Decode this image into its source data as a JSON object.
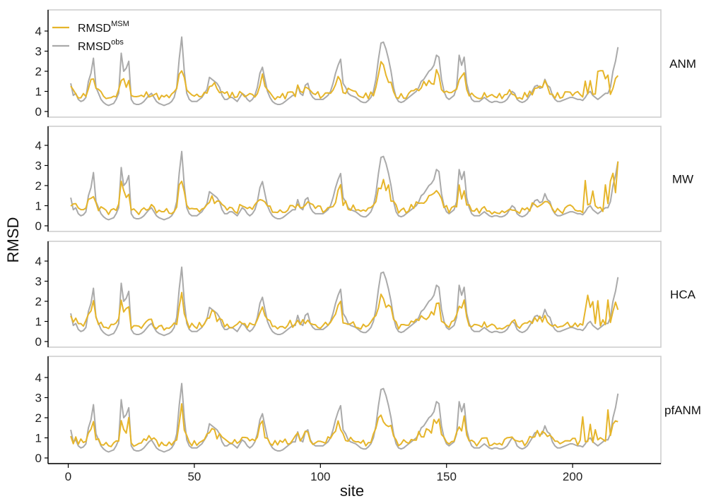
{
  "chart_data": {
    "type": "line",
    "xlabel": "site",
    "ylabel": "RMSD",
    "xlim": [
      -8,
      235
    ],
    "ylim": [
      -0.2,
      4.5
    ],
    "x_ticks": [
      0,
      50,
      100,
      150,
      200
    ],
    "y_ticks": [
      0,
      1,
      2,
      3,
      4
    ],
    "grid": false,
    "legend": {
      "placement": "top-left",
      "entries": [
        {
          "base": "RMSD",
          "sup": "MSM",
          "color": "#E6B52A"
        },
        {
          "base": "RMSD",
          "sup": "obs",
          "color": "#AAAAAA"
        }
      ]
    },
    "observed_values": [
      1.4,
      0.8,
      0.9,
      0.6,
      0.5,
      0.55,
      0.7,
      1.5,
      1.9,
      2.65,
      1.2,
      0.9,
      0.6,
      0.45,
      0.35,
      0.3,
      0.35,
      0.4,
      0.6,
      0.9,
      2.9,
      2.0,
      2.15,
      2.5,
      0.6,
      0.4,
      0.35,
      0.35,
      0.4,
      0.5,
      0.65,
      0.8,
      0.9,
      0.7,
      0.5,
      0.4,
      0.35,
      0.3,
      0.35,
      0.4,
      0.5,
      0.7,
      1.2,
      2.6,
      3.7,
      2.0,
      0.9,
      0.6,
      0.5,
      0.5,
      0.5,
      0.6,
      0.7,
      0.9,
      1.1,
      1.7,
      1.6,
      1.5,
      1.4,
      1.2,
      0.8,
      0.6,
      0.6,
      0.7,
      0.7,
      0.6,
      0.5,
      0.7,
      0.9,
      0.8,
      0.6,
      0.5,
      0.6,
      0.8,
      1.2,
      1.9,
      2.2,
      1.6,
      1.0,
      0.7,
      0.5,
      0.4,
      0.35,
      0.35,
      0.4,
      0.5,
      0.6,
      0.7,
      0.8,
      0.8,
      1.3,
      0.9,
      0.8,
      1.3,
      1.4,
      0.9,
      0.7,
      0.6,
      0.6,
      0.6,
      0.6,
      0.7,
      0.8,
      1.0,
      1.4,
      1.9,
      2.3,
      2.6,
      1.4,
      1.2,
      0.9,
      0.8,
      0.75,
      0.7,
      0.6,
      0.5,
      0.45,
      0.45,
      0.55,
      0.7,
      1.0,
      1.6,
      2.6,
      3.4,
      3.45,
      3.1,
      2.6,
      2.0,
      1.2,
      0.7,
      0.5,
      0.45,
      0.5,
      0.6,
      0.7,
      0.8,
      0.9,
      1.0,
      1.2,
      1.5,
      1.6,
      1.8,
      2.0,
      2.1,
      2.3,
      2.8,
      2.7,
      1.6,
      1.0,
      0.7,
      0.6,
      0.7,
      0.8,
      1.2,
      2.8,
      2.3,
      2.7,
      1.4,
      0.9,
      0.6,
      0.5,
      0.5,
      0.5,
      0.6,
      0.7,
      0.6,
      0.5,
      0.45,
      0.5,
      0.5,
      0.45,
      0.45,
      0.5,
      0.6,
      0.8,
      1.0,
      0.9,
      0.6,
      0.5,
      0.45,
      0.5,
      0.6,
      0.8,
      1.0,
      1.25,
      1.3,
      1.15,
      1.2,
      1.6,
      1.3,
      1.2,
      0.8,
      0.6,
      0.5,
      0.5,
      0.55,
      0.6,
      0.65,
      0.7,
      0.7,
      0.65,
      0.6,
      0.6,
      0.55,
      0.7,
      0.9,
      1.0,
      0.8,
      0.7,
      0.6,
      0.7,
      0.8,
      0.9,
      0.9,
      1.2,
      2.0,
      2.5,
      3.2
    ],
    "panels": [
      {
        "label": "ANM",
        "seed": 11
      },
      {
        "label": "MW",
        "seed": 23
      },
      {
        "label": "HCA",
        "seed": 37
      },
      {
        "label": "pfANM",
        "seed": 53
      }
    ]
  }
}
